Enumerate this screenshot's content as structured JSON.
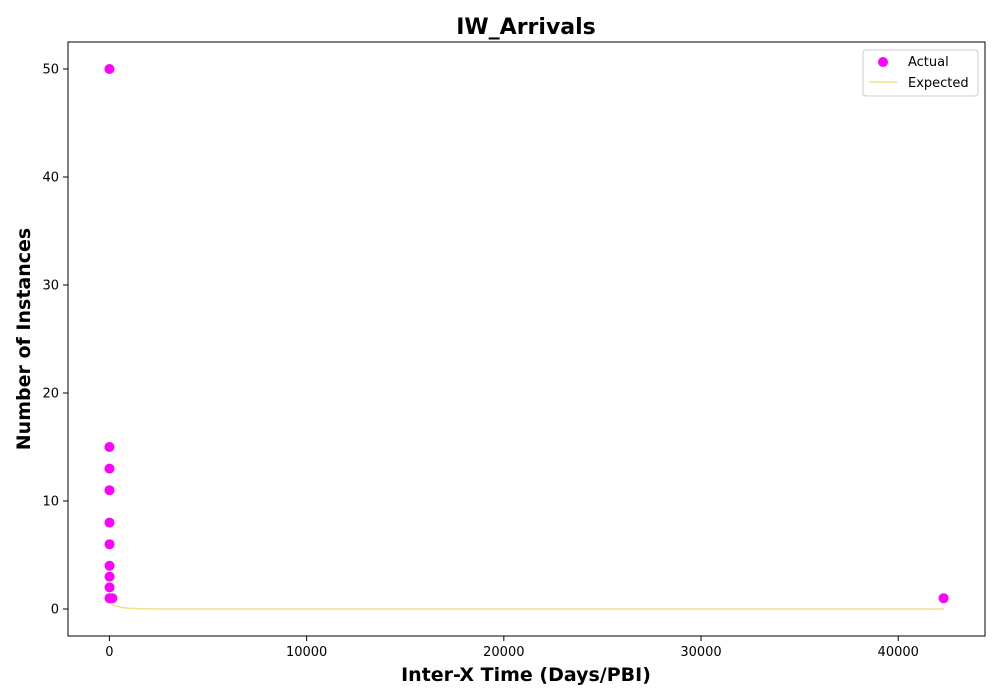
{
  "chart_data": {
    "type": "scatter",
    "title": "IW_Arrivals",
    "xlabel": "Inter-X Time (Days/PBI)",
    "ylabel": "Number of Instances",
    "xlim": [
      -2100,
      44400
    ],
    "ylim": [
      -2.5,
      52.5
    ],
    "xticks": [
      0,
      10000,
      20000,
      30000,
      40000
    ],
    "yticks": [
      0,
      10,
      20,
      30,
      40,
      50
    ],
    "grid": false,
    "legend_position": "top-right",
    "series": [
      {
        "name": "Actual",
        "kind": "scatter",
        "color": "#ff00ff",
        "x": [
          1,
          2,
          3,
          4,
          5,
          6,
          7,
          8,
          9,
          10,
          12,
          150,
          42300
        ],
        "y": [
          50,
          15,
          13,
          11,
          8,
          6,
          4,
          3,
          2,
          1,
          1,
          1,
          1
        ]
      },
      {
        "name": "Expected",
        "kind": "line",
        "color": "#f0e08c",
        "x": [
          0,
          100,
          200,
          400,
          700,
          1000,
          1500,
          2000,
          3000,
          5000,
          10000,
          20000,
          30000,
          42300
        ],
        "y": [
          0.55,
          0.45,
          0.35,
          0.24,
          0.13,
          0.07,
          0.03,
          0.01,
          0.0,
          0.0,
          0.0,
          0.0,
          0.0,
          0.0
        ]
      }
    ]
  }
}
